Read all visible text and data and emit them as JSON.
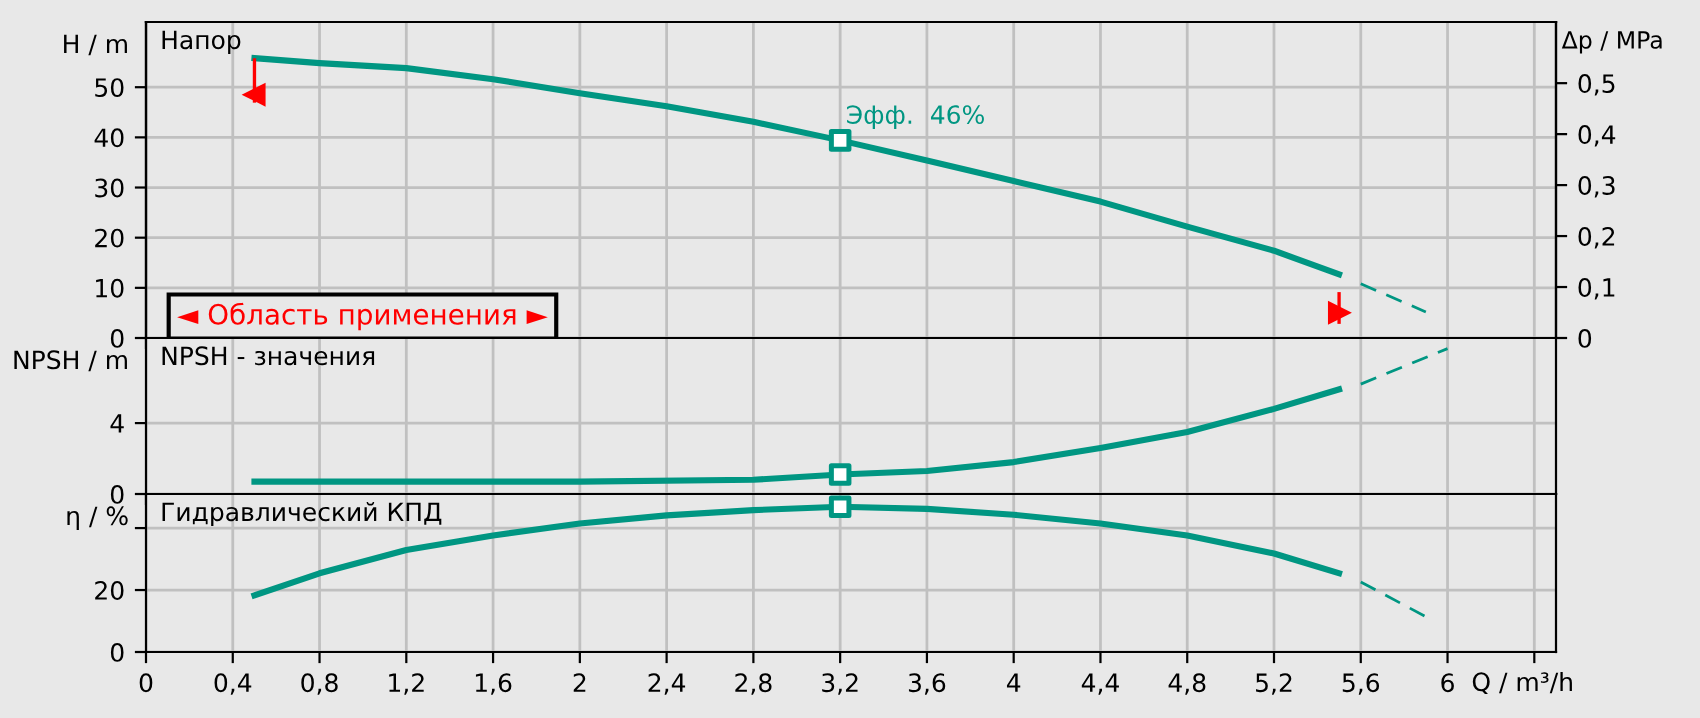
{
  "chart_data": [
    {
      "type": "line",
      "ylabel": "H / m",
      "y2label": "Δp / MPa",
      "series": [
        {
          "type": "line",
          "color": "#009682",
          "line_style": "solid",
          "x": [
            0.5,
            0.8,
            1.2,
            1.6,
            2.0,
            2.4,
            2.8,
            3.2,
            3.6,
            4.0,
            4.4,
            4.8,
            5.2,
            5.5
          ],
          "values": [
            55.8,
            54.8,
            53.8,
            51.6,
            48.8,
            46.2,
            43.1,
            39.4,
            35.4,
            31.3,
            27.2,
            22.2,
            17.4,
            12.7
          ]
        },
        {
          "type": "line",
          "color": "#009682",
          "line_style": "dashed",
          "x": [
            5.6,
            5.9
          ],
          "values": [
            10.8,
            5.2
          ]
        },
        {
          "type": "scatter",
          "color": "#009682",
          "marker": "square",
          "x": [
            3.2
          ],
          "values": [
            39.4
          ]
        }
      ],
      "xlim": [
        0,
        6.5
      ],
      "ylim": [
        0,
        63
      ],
      "yticks": [
        0,
        10,
        20,
        30,
        40,
        50
      ],
      "y2lim": [
        0,
        0.62
      ],
      "y2ticks": [
        0,
        {
          "value": 0.1,
          "label": "0,1"
        },
        {
          "value": 0.2,
          "label": "0,2"
        },
        {
          "value": 0.3,
          "label": "0,3"
        },
        {
          "value": 0.4,
          "label": "0,4"
        },
        {
          "value": 0.5,
          "label": "0,5"
        }
      ],
      "ref_lines": [
        {
          "axis": "x",
          "value": 0.5,
          "color": "#ff0000"
        },
        {
          "axis": "x",
          "value": 5.5,
          "color": "#ff0000"
        }
      ],
      "annotations": [
        "Напор",
        "◄ Область применения ►",
        {
          "text": "Эфф.  46%",
          "x": 3.2,
          "y": 39.4
        }
      ],
      "grid": true,
      "tick_labels": "y"
    },
    {
      "type": "line",
      "ylabel": "NPSH / m",
      "series": [
        {
          "type": "line",
          "color": "#009682",
          "line_style": "solid",
          "x": [
            0.5,
            1.2,
            2.0,
            2.8,
            3.2,
            3.6,
            4.0,
            4.4,
            4.8,
            5.2,
            5.5
          ],
          "values": [
            0.7,
            0.7,
            0.7,
            0.8,
            1.1,
            1.3,
            1.8,
            2.6,
            3.5,
            4.8,
            5.9
          ]
        },
        {
          "type": "line",
          "color": "#009682",
          "line_style": "dashed",
          "x": [
            5.6,
            6.0
          ],
          "values": [
            6.2,
            8.2
          ]
        },
        {
          "type": "scatter",
          "color": "#009682",
          "marker": "square",
          "x": [
            3.2
          ],
          "values": [
            1.1
          ]
        }
      ],
      "xlim": [
        0,
        6.5
      ],
      "ylim": [
        0,
        8.8
      ],
      "yticks": [
        0,
        4
      ],
      "annotations": [
        "NPSH - значения"
      ],
      "grid": true,
      "tick_labels": "y"
    },
    {
      "type": "line",
      "ylabel": "η / %",
      "xlabel": "Q / m³/h",
      "series": [
        {
          "type": "line",
          "color": "#009682",
          "line_style": "solid",
          "x": [
            0.5,
            0.8,
            1.2,
            1.6,
            2.0,
            2.4,
            2.8,
            3.2,
            3.6,
            4.0,
            4.4,
            4.8,
            5.2,
            5.5
          ],
          "values": [
            18.3,
            25.4,
            32.9,
            37.6,
            41.5,
            44.1,
            45.8,
            46.9,
            46.2,
            44.3,
            41.5,
            37.6,
            31.8,
            25.4
          ]
        },
        {
          "type": "line",
          "color": "#009682",
          "line_style": "dashed",
          "x": [
            5.6,
            5.9
          ],
          "values": [
            22.6,
            11.4
          ]
        },
        {
          "type": "scatter",
          "color": "#009682",
          "marker": "square",
          "x": [
            3.2
          ],
          "values": [
            46.9
          ]
        }
      ],
      "xlim": [
        0,
        6.5
      ],
      "xticks": [
        0,
        {
          "value": 0.4,
          "label": "0,4"
        },
        {
          "value": 0.8,
          "label": "0,8"
        },
        {
          "value": 1.2,
          "label": "1,2"
        },
        {
          "value": 1.6,
          "label": "1,6"
        },
        2,
        {
          "value": 2.4,
          "label": "2,4"
        },
        {
          "value": 2.8,
          "label": "2,8"
        },
        {
          "value": 3.2,
          "label": "3,2"
        },
        {
          "value": 3.6,
          "label": "3,6"
        },
        4,
        {
          "value": 4.4,
          "label": "4,4"
        },
        {
          "value": 4.8,
          "label": "4,8"
        },
        {
          "value": 5.2,
          "label": "5,2"
        },
        {
          "value": 5.6,
          "label": "5,6"
        },
        6,
        {
          "value": 6.4,
          "label": null
        }
      ],
      "ylim": [
        0,
        51
      ],
      "yticks": [
        0,
        20,
        {
          "value": 40,
          "label": null
        }
      ],
      "annotations": [
        "Гидравлический КПД"
      ],
      "grid": true
    }
  ]
}
